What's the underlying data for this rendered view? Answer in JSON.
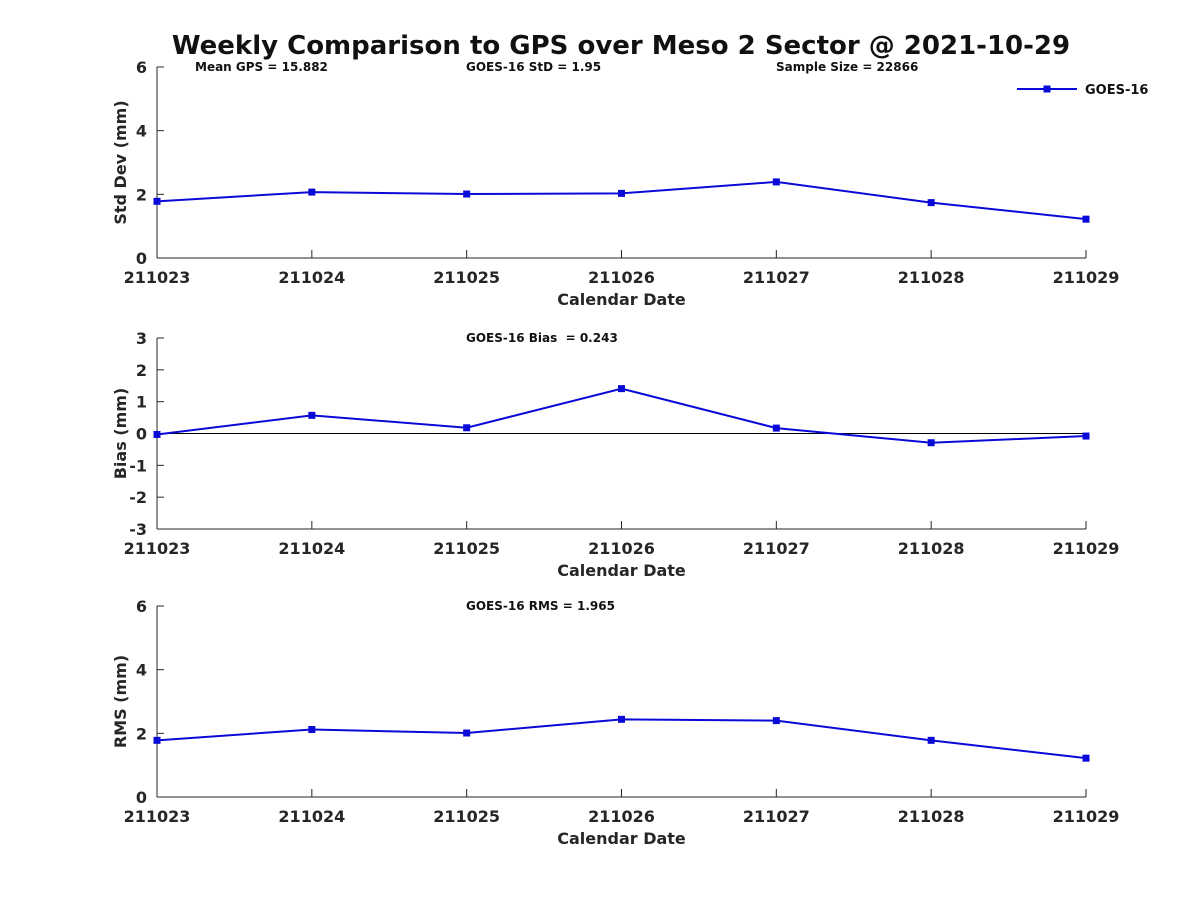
{
  "figure_title": "Weekly Comparison to GPS over Meso 2 Sector @ 2021-10-29",
  "colors": {
    "series": "#0a0ad8",
    "axis": "#262626"
  },
  "chart_data": [
    {
      "type": "line",
      "title": "",
      "xlabel": "Calendar Date",
      "ylabel": "Std Dev (mm)",
      "categories": [
        "211023",
        "211024",
        "211025",
        "211026",
        "211027",
        "211028",
        "211029"
      ],
      "ylim": [
        0,
        6
      ],
      "yticks": [
        0,
        2,
        4,
        6
      ],
      "series": [
        {
          "name": "GOES-16",
          "values": [
            1.78,
            2.07,
            2.01,
            2.03,
            2.39,
            1.74,
            1.22
          ]
        }
      ],
      "annotations": [
        "Mean GPS = 15.882",
        "GOES-16 StD = 1.95",
        "Sample Size = 22866"
      ],
      "legend": {
        "show": true,
        "placement": "top-right"
      },
      "zero_line": false
    },
    {
      "type": "line",
      "title": "",
      "xlabel": "Calendar Date",
      "ylabel": "Bias (mm)",
      "categories": [
        "211023",
        "211024",
        "211025",
        "211026",
        "211027",
        "211028",
        "211029"
      ],
      "ylim": [
        -3,
        3
      ],
      "yticks": [
        -3,
        -2,
        -1,
        0,
        1,
        2,
        3
      ],
      "series": [
        {
          "name": "GOES-16",
          "values": [
            -0.03,
            0.57,
            0.18,
            1.41,
            0.17,
            -0.29,
            -0.08
          ]
        }
      ],
      "annotations": [
        "GOES-16 Bias  = 0.243"
      ],
      "legend": {
        "show": false
      },
      "zero_line": true
    },
    {
      "type": "line",
      "title": "",
      "xlabel": "Calendar Date",
      "ylabel": "RMS (mm)",
      "categories": [
        "211023",
        "211024",
        "211025",
        "211026",
        "211027",
        "211028",
        "211029"
      ],
      "ylim": [
        0,
        6
      ],
      "yticks": [
        0,
        2,
        4,
        6
      ],
      "series": [
        {
          "name": "GOES-16",
          "values": [
            1.78,
            2.12,
            2.01,
            2.44,
            2.4,
            1.78,
            1.22
          ]
        }
      ],
      "annotations": [
        "GOES-16 RMS = 1.965"
      ],
      "legend": {
        "show": false
      },
      "zero_line": false
    }
  ]
}
